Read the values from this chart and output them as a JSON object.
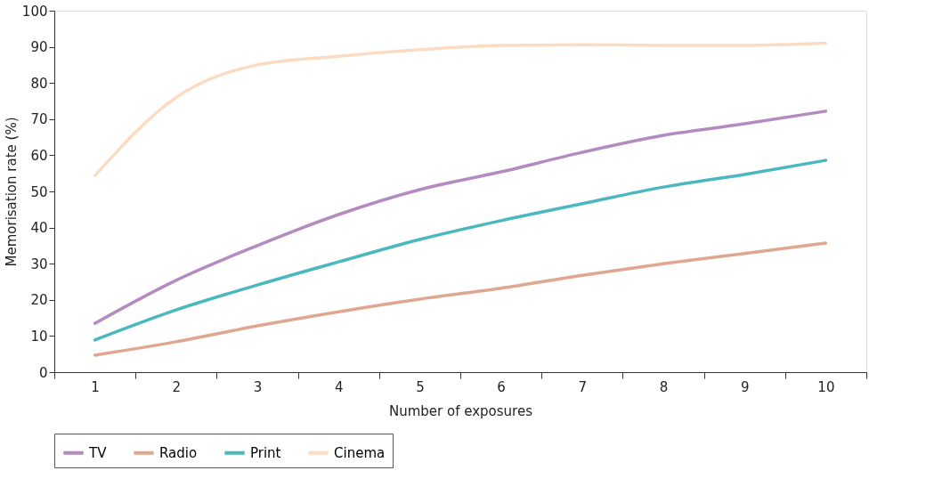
{
  "chart_data": {
    "type": "line",
    "xlabel": "Number of exposures",
    "ylabel": "Memorisation rate (%)",
    "categories": [
      "1",
      "2",
      "3",
      "4",
      "5",
      "6",
      "7",
      "8",
      "9",
      "10"
    ],
    "series": [
      {
        "name": "TV",
        "color": "#b48bc0",
        "values": [
          13.5,
          25.4,
          35,
          43.6,
          50.5,
          55.4,
          60.8,
          65.5,
          68.7,
          72.2
        ]
      },
      {
        "name": "Radio",
        "color": "#e0a790",
        "values": [
          4.7,
          8.4,
          12.8,
          16.7,
          20.2,
          23.2,
          26.8,
          30,
          32.8,
          35.7
        ]
      },
      {
        "name": "Print",
        "color": "#4bb8bf",
        "values": [
          8.9,
          17.2,
          24.1,
          30.5,
          36.7,
          41.9,
          46.6,
          51.2,
          54.7,
          58.6
        ]
      },
      {
        "name": "Cinema",
        "color": "#fbdcc3",
        "values": [
          54.4,
          76,
          85,
          87.4,
          89.2,
          90.4,
          90.6,
          90.4,
          90.4,
          91
        ]
      }
    ],
    "ylim": [
      0,
      100
    ],
    "yticks": [
      0,
      10,
      20,
      30,
      40,
      50,
      60,
      70,
      80,
      90,
      100
    ],
    "grid": false,
    "legend": "bottom",
    "marker": "none",
    "line_style": "solid"
  }
}
